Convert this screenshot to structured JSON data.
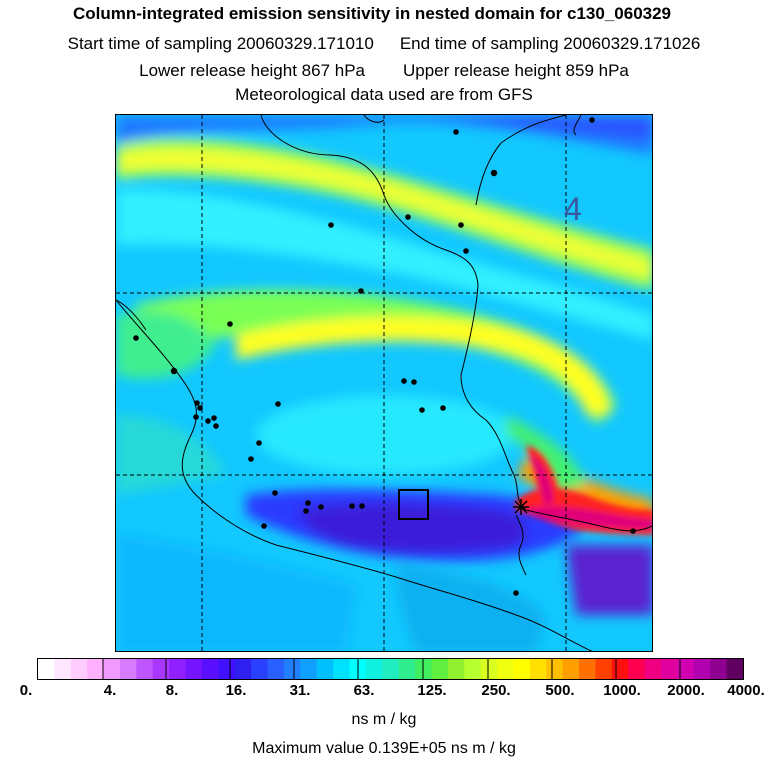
{
  "header": {
    "title": "Column-integrated emission sensitivity in nested domain for c130_060329",
    "start_label": "Start time of sampling 20060329.171010",
    "end_label": "End time of sampling 20060329.171026",
    "lower_label": "Lower release height  867 hPa",
    "upper_label": "Upper release height  859 hPa",
    "met_label": "Meteorological data used are from GFS"
  },
  "map": {
    "grid_label": "4",
    "colors": {
      "magenta": "#e0007a",
      "red": "#ff2020",
      "orange": "#ffa500",
      "yellow": "#ffff00",
      "yellowgreen": "#c6ff32",
      "green": "#55ee77",
      "cyan": "#00ffff",
      "skyblue": "#1fb8ff",
      "blue": "#2a66ff",
      "darkblue": "#2a2ae0",
      "purple": "#5a20d0"
    }
  },
  "legend": {
    "ticks": [
      "0.",
      "4.",
      "8.",
      "16.",
      "31.",
      "63.",
      "125.",
      "250.",
      "500.",
      "1000.",
      "2000.",
      "4000."
    ],
    "colors": [
      "#ffffff",
      "#ffe6ff",
      "#ffccff",
      "#ffb0ff",
      "#f09aff",
      "#d77cff",
      "#bf55ff",
      "#a838ff",
      "#9020ff",
      "#7515ff",
      "#5a10ff",
      "#4010ff",
      "#3020f0",
      "#2a40ff",
      "#2a60ff",
      "#2080ff",
      "#10a0ff",
      "#00c0ff",
      "#00e0ff",
      "#00ffff",
      "#10f0e0",
      "#20eec0",
      "#30ee90",
      "#40ee60",
      "#60ee40",
      "#90f030",
      "#b8ff30",
      "#d8ff20",
      "#f0ff10",
      "#ffff00",
      "#ffe000",
      "#ffc000",
      "#ffa000",
      "#ff7000",
      "#ff4000",
      "#ff1010",
      "#ff0050",
      "#f00080",
      "#e000a0",
      "#d000b0",
      "#b000b0",
      "#900090",
      "#600060"
    ],
    "unit": "ns m / kg",
    "max_value": "Maximum value  0.139E+05 ns m / kg"
  }
}
